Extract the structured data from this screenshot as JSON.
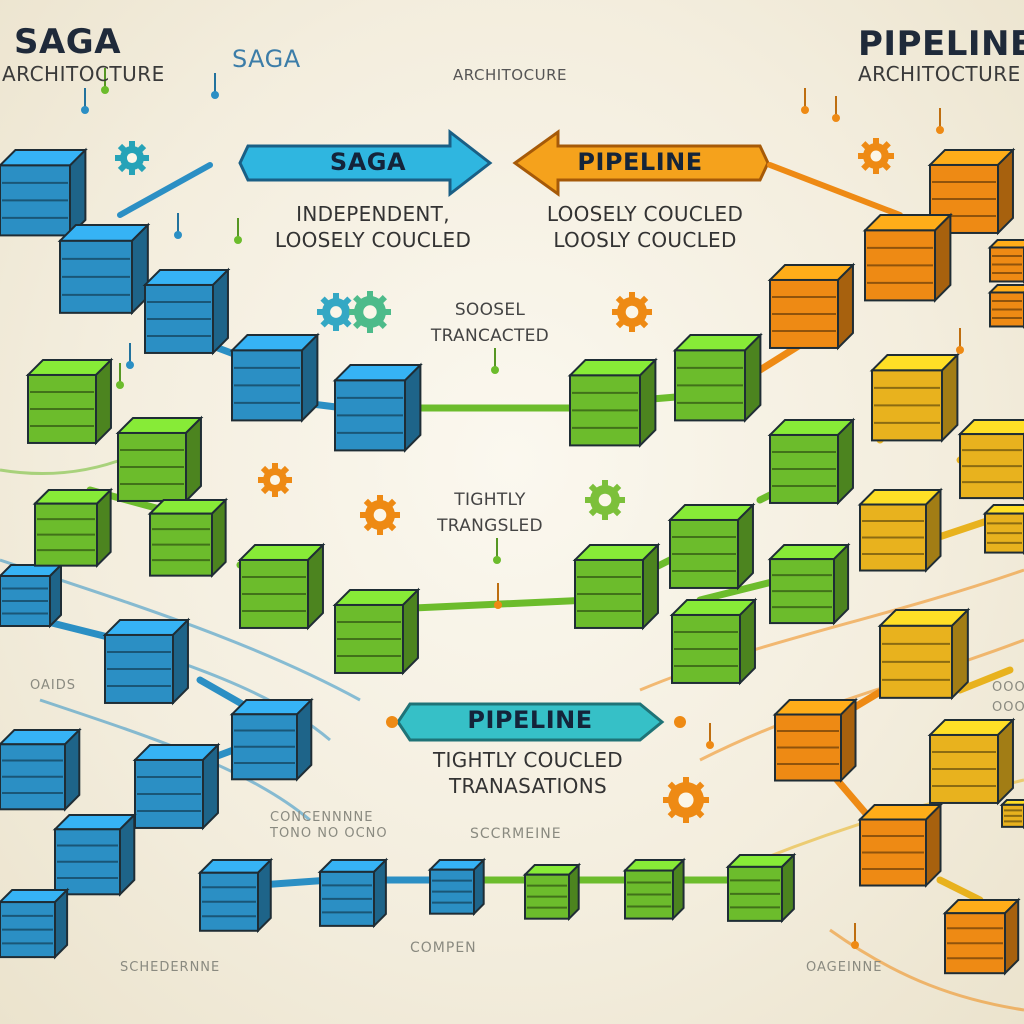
{
  "header": {
    "saga_title": "SAGA",
    "saga_subtitle": "ARCHITOCTURE",
    "saga_mid_title": "SAGA",
    "mid_subtitle": "ARCHITOCURE",
    "pipeline_title": "PIPELINE",
    "pipeline_subtitle": "ARCHITOCTURE"
  },
  "arrows": {
    "saga": "SAGA",
    "pipeline_top": "PIPELINE",
    "pipeline_bottom": "PIPELINE"
  },
  "labels": {
    "saga_desc_1": "INDEPENDENT,",
    "saga_desc_2": "LOOSELY COUCLED",
    "pipeline_desc_1": "LOOSELY COUCLED",
    "pipeline_desc_2": "LOOSLY COUCLED",
    "mid_1_a": "SOOSEL",
    "mid_1_b": "TRANCACTED",
    "mid_2_a": "TIGHTLY",
    "mid_2_b": "TRANGSLED",
    "bottom_1": "TIGHTLY COUCLED",
    "bottom_2": "TRANASATIONS"
  },
  "faded_labels": {
    "left_small": "OAIDS",
    "center_small_1": "CONCENNNNE",
    "center_small_2": "TONO NO OCNO",
    "center_right": "SCCRMEINE",
    "bottom_left": "SCHEDERNNE",
    "bottom_center": "COMPEN",
    "bottom_right": "OAGEINNE",
    "right_small_1": "OOO",
    "right_small_2": "OOO"
  },
  "colors": {
    "blue": "#2b8fc4",
    "green": "#6cbc2c",
    "orange": "#ee8a14",
    "yellow": "#e8b21e",
    "background": "#f4efe2"
  }
}
